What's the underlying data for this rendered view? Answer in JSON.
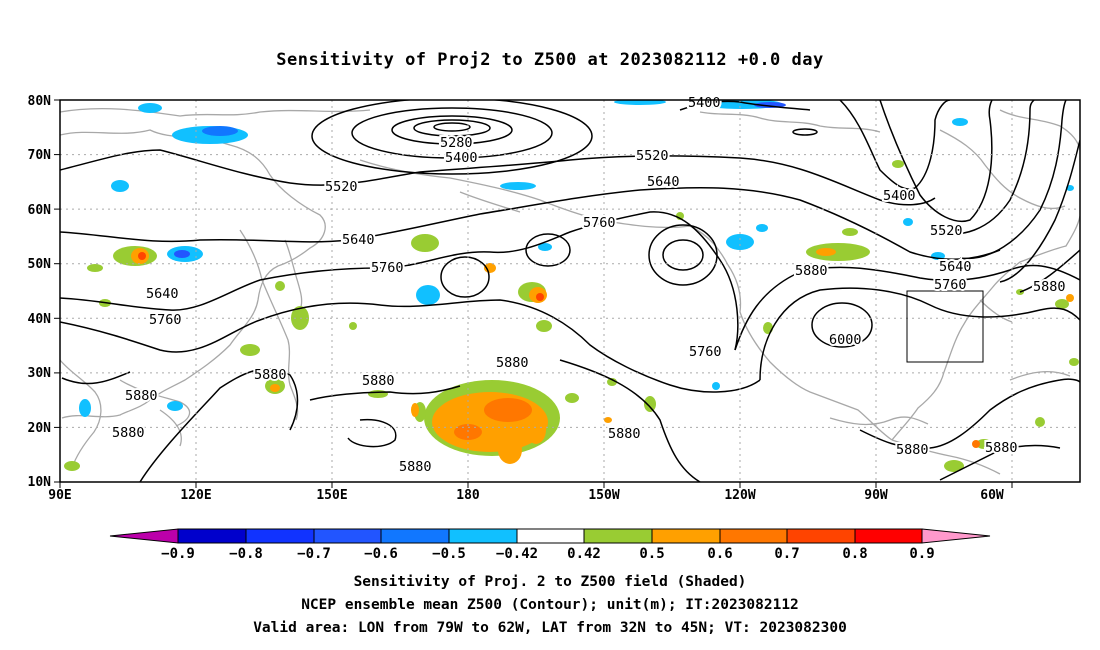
{
  "title": "Sensitivity of Proj2 to Z500 at 2023082112 +0.0 day",
  "map": {
    "lat_labels": [
      "80N",
      "70N",
      "60N",
      "50N",
      "40N",
      "30N",
      "20N",
      "10N"
    ],
    "lon_labels": [
      "90E",
      "120E",
      "150E",
      "180",
      "150W",
      "120W",
      "90W",
      "60W"
    ],
    "lon_range_deg_east": [
      90,
      315
    ],
    "lat_range": [
      10,
      80
    ],
    "grid": "dotted every 30 deg lon / 10 deg lat",
    "valid_box": {
      "lon": [
        -79,
        -62
      ],
      "lat": [
        32,
        45
      ]
    },
    "contour_labels": [
      "5400",
      "5280",
      "5400",
      "5520",
      "5520",
      "5640",
      "5640",
      "5760",
      "5760",
      "5760",
      "5880",
      "6000",
      "5880",
      "5880",
      "5880",
      "5880",
      "5880",
      "5880",
      "5880",
      "5880",
      "5400",
      "5520",
      "5640",
      "5760",
      "5640",
      "5760",
      "5880",
      "5880"
    ]
  },
  "colorbar": {
    "ticks": [
      "−0.9",
      "−0.8",
      "−0.7",
      "−0.6",
      "−0.5",
      "−0.42",
      "0.42",
      "0.5",
      "0.6",
      "0.7",
      "0.8",
      "0.9"
    ],
    "colors": [
      "#bb00aa",
      "#0000cc",
      "#1133ff",
      "#2255ff",
      "#1177ff",
      "#0aa0ff",
      "#11c0ff",
      "#ffffff",
      "#99cc33",
      "#ffa000",
      "#ff7700",
      "#ff4400",
      "#ff0000",
      "#ff99cc"
    ]
  },
  "footer": {
    "line1": "Sensitivity of Proj. 2 to Z500 field (Shaded)",
    "line2": "NCEP ensemble mean Z500 (Contour); unit(m); IT:2023082112",
    "line3": "Valid area: LON from 79W to 62W, LAT from 32N to 45N; VT: 2023082300"
  }
}
